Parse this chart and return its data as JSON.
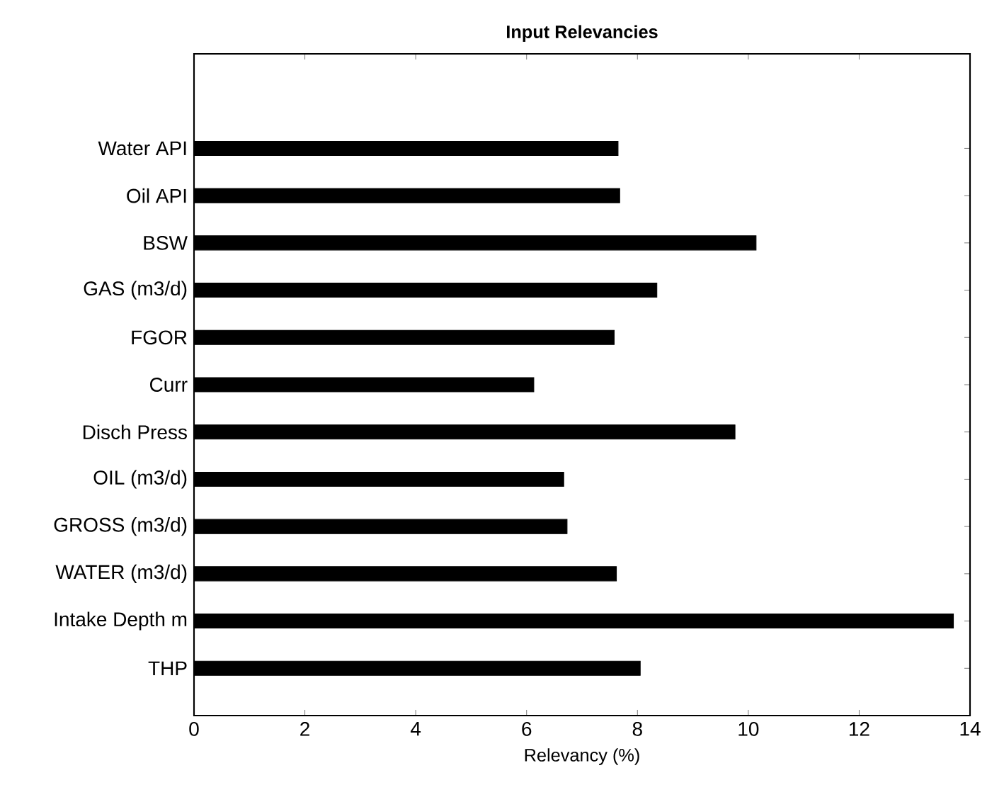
{
  "chart_data": {
    "type": "bar",
    "orientation": "horizontal",
    "title": "Input Relevancies",
    "xlabel": "Relevancy (%)",
    "categories": [
      "Water API",
      "Oil API",
      "BSW",
      "GAS (m3/d)",
      "FGOR",
      "Curr",
      "Disch Press",
      "OIL (m3/d)",
      "GROSS (m3/d)",
      "WATER (m3/d)",
      "Intake Depth m",
      "THP"
    ],
    "values": [
      7.65,
      7.68,
      10.14,
      8.35,
      7.58,
      6.13,
      9.76,
      6.67,
      6.73,
      7.62,
      13.7,
      8.05
    ],
    "color": "#000000",
    "xlim": [
      0,
      14
    ],
    "xticks": [
      0,
      2,
      4,
      6,
      8,
      10,
      12,
      14
    ],
    "grid": false
  }
}
